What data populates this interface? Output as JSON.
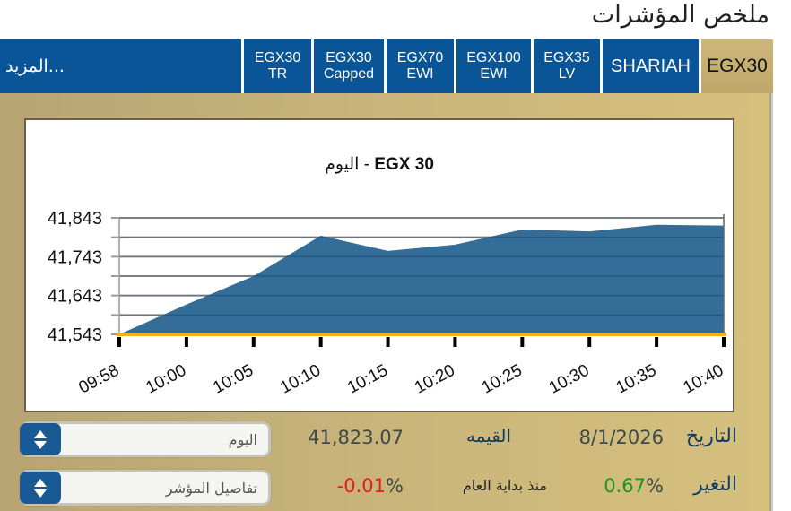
{
  "page": {
    "title": "ملخص المؤشرات"
  },
  "tabs": [
    {
      "id": "more",
      "label": "المزيد..."
    },
    {
      "id": "egx30tr",
      "line1": "EGX30",
      "line2": "TR"
    },
    {
      "id": "egx30capped",
      "line1": "EGX30",
      "line2": "Capped"
    },
    {
      "id": "egx70ewi",
      "line1": "EGX70",
      "line2": "EWI"
    },
    {
      "id": "egx100ewi",
      "line1": "EGX100",
      "line2": "EWI"
    },
    {
      "id": "egx35lv",
      "line1": "EGX35",
      "line2": "LV"
    },
    {
      "id": "shariah",
      "label": "SHARIAH"
    },
    {
      "id": "egx30",
      "label": "EGX30",
      "active": true
    }
  ],
  "colors": {
    "tab_bg": "#0a5597",
    "tab_active_bg": "#c9b275",
    "panel_bg": "#c9b57b",
    "area_fill": "#346e98",
    "baseline": "#f2b21b",
    "negative": "#e0201a",
    "positive": "#1f9320"
  },
  "chart": {
    "title_name": "EGX 30",
    "title_sep": " - ",
    "title_period": "اليوم"
  },
  "chart_data": {
    "type": "area",
    "title": "EGX 30 - اليوم",
    "x": [
      "09:58",
      "10:00",
      "10:05",
      "10:10",
      "10:15",
      "10:20",
      "10:25",
      "10:30",
      "10:35",
      "10:40"
    ],
    "series": [
      {
        "name": "EGX 30",
        "values": [
          41543,
          41620,
          41693,
          41797,
          41758,
          41774,
          41813,
          41808,
          41825,
          41823
        ]
      }
    ],
    "yticks": [
      41543,
      41643,
      41743,
      41843
    ],
    "ytick_labels": [
      "41,543",
      "41,643",
      "41,743",
      "41,843"
    ],
    "ylim": [
      41543,
      41843
    ],
    "grid": true,
    "xlabel": "",
    "ylabel": ""
  },
  "info": {
    "period_selector": "اليوم",
    "details_selector": "تفاصيل المؤشر",
    "value": "41,823.07",
    "value_label": "القيمه",
    "ytd_change_num": "-0.01",
    "ytd_change_suffix": "%",
    "ytd_label": "منذ بداية العام",
    "date": "8/1/2026",
    "date_label": "التاريخ",
    "change_num": "0.67",
    "change_suffix": "%",
    "change_label": "التغير"
  }
}
